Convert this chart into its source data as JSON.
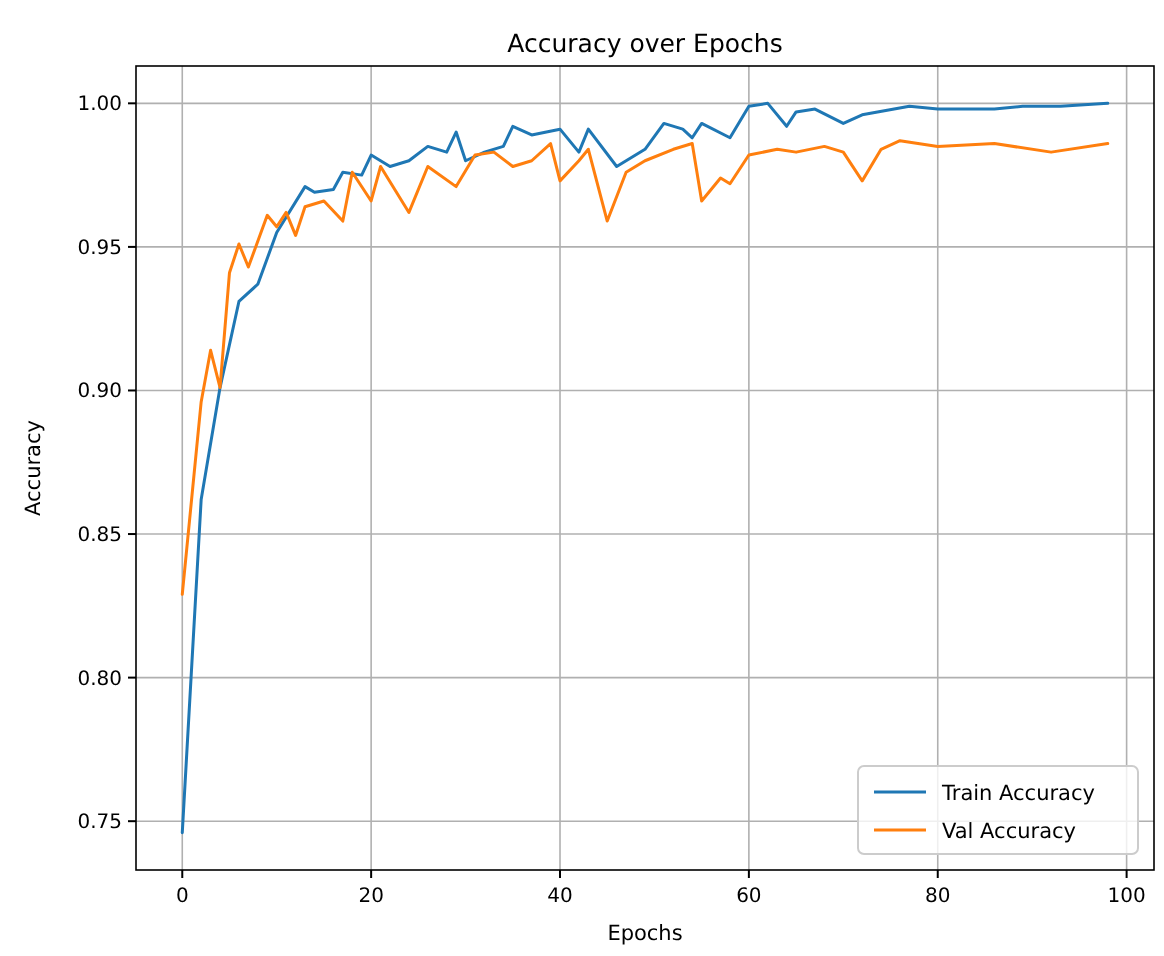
{
  "chart_data": {
    "type": "line",
    "title": "Accuracy over Epochs",
    "xlabel": "Epochs",
    "ylabel": "Accuracy",
    "xlim": [
      -4.9,
      102.9
    ],
    "ylim": [
      0.733,
      1.013
    ],
    "xticks": [
      0,
      20,
      40,
      60,
      80,
      100
    ],
    "yticks": [
      {
        "value": 0.75,
        "label": "0.75"
      },
      {
        "value": 0.8,
        "label": "0.80"
      },
      {
        "value": 0.85,
        "label": "0.85"
      },
      {
        "value": 0.9,
        "label": "0.90"
      },
      {
        "value": 0.95,
        "label": "0.95"
      },
      {
        "value": 1.0,
        "label": "1.00"
      }
    ],
    "grid": true,
    "legend": "bottom right",
    "marker": "none",
    "line_style": "solid",
    "series": [
      {
        "name": "Train Accuracy",
        "color": "#1f77b4",
        "x": [
          0,
          2,
          4,
          6,
          8,
          10,
          13,
          14,
          16,
          17,
          19,
          20,
          22,
          24,
          26,
          28,
          29,
          30,
          32,
          34,
          35,
          37,
          40,
          42,
          43,
          46,
          49,
          51,
          53,
          54,
          55,
          58,
          60,
          62,
          64,
          65,
          67,
          70,
          72,
          77,
          80,
          86,
          89,
          93,
          98
        ],
        "values": [
          0.746,
          0.862,
          0.901,
          0.931,
          0.937,
          0.955,
          0.971,
          0.969,
          0.97,
          0.976,
          0.975,
          0.982,
          0.978,
          0.98,
          0.985,
          0.983,
          0.99,
          0.98,
          0.983,
          0.985,
          0.992,
          0.989,
          0.991,
          0.983,
          0.991,
          0.978,
          0.984,
          0.993,
          0.991,
          0.988,
          0.993,
          0.988,
          0.999,
          1.0,
          0.992,
          0.997,
          0.998,
          0.993,
          0.996,
          0.999,
          0.998,
          0.998,
          0.999,
          0.999,
          1.0
        ]
      },
      {
        "name": "Val Accuracy",
        "color": "#ff7f0e",
        "x": [
          0,
          2,
          3,
          4,
          5,
          6,
          7,
          9,
          10,
          11,
          12,
          13,
          15,
          17,
          18,
          20,
          21,
          24,
          26,
          29,
          31,
          33,
          35,
          37,
          39,
          40,
          42,
          43,
          45,
          47,
          49,
          52,
          54,
          55,
          57,
          58,
          60,
          63,
          65,
          68,
          70,
          72,
          74,
          76,
          80,
          86,
          92,
          98
        ],
        "values": [
          0.829,
          0.896,
          0.914,
          0.901,
          0.941,
          0.951,
          0.943,
          0.961,
          0.957,
          0.962,
          0.954,
          0.964,
          0.966,
          0.959,
          0.976,
          0.966,
          0.978,
          0.962,
          0.978,
          0.971,
          0.982,
          0.983,
          0.978,
          0.98,
          0.986,
          0.973,
          0.98,
          0.984,
          0.959,
          0.976,
          0.98,
          0.984,
          0.986,
          0.966,
          0.974,
          0.972,
          0.982,
          0.984,
          0.983,
          0.985,
          0.983,
          0.973,
          0.984,
          0.987,
          0.985,
          0.986,
          0.983,
          0.986
        ]
      }
    ]
  }
}
